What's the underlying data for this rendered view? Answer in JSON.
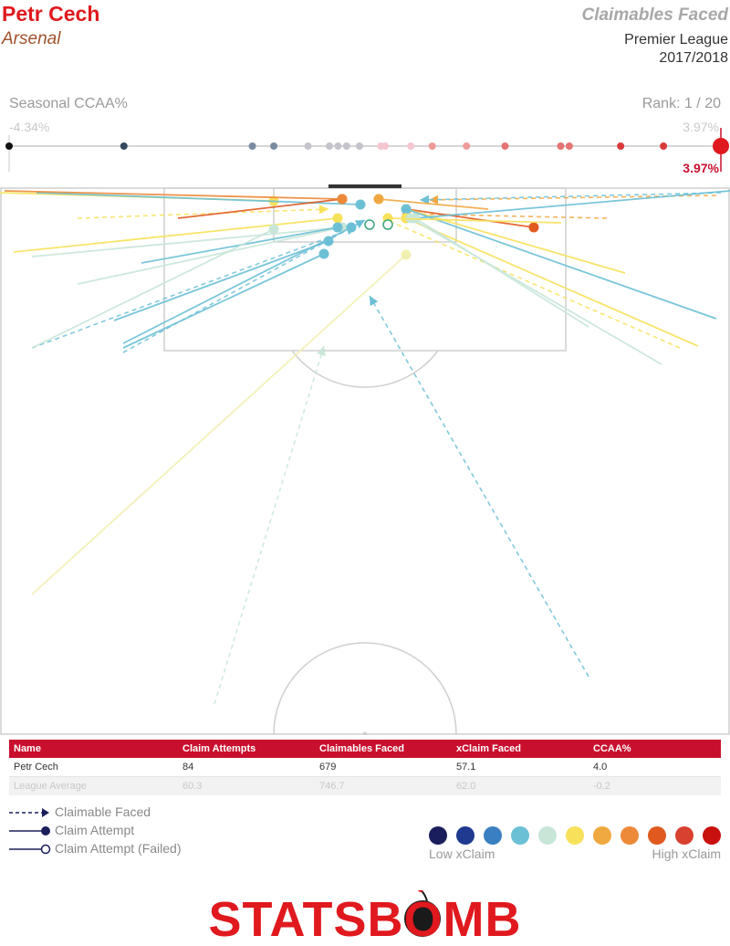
{
  "header": {
    "player": "Petr Cech",
    "team": "Arsenal",
    "title": "Claimables Faced",
    "competition": "Premier League",
    "season": "2017/2018"
  },
  "scale": {
    "label": "Seasonal CCAA%",
    "rank": "Rank: 1 / 20",
    "min_label": "-4.34%",
    "max_label": "3.97%",
    "value_label": "3.97%",
    "range": [
      -4.34,
      3.97
    ],
    "highlight": 3.97,
    "others": [
      -4.34,
      -3.0,
      -1.5,
      -1.25,
      -0.85,
      -0.6,
      -0.5,
      -0.4,
      -0.25,
      0.0,
      0.05,
      0.35,
      0.6,
      1.0,
      1.45,
      2.1,
      2.2,
      2.8,
      3.3
    ]
  },
  "table": {
    "headers": [
      "Name",
      "Claim Attempts",
      "Claimables Faced",
      "xClaim Faced",
      "CCAA%"
    ],
    "rows": [
      [
        "Petr Cech",
        "84",
        "679",
        "57.1",
        "4.0"
      ]
    ],
    "average": [
      "League Average",
      "60.3",
      "746.7",
      "62.0",
      "-0.2"
    ]
  },
  "legend": {
    "faced": "Claimable Faced",
    "attempt": "Claim Attempt",
    "failed": "Claim Attempt (Failed)",
    "low": "Low xClaim",
    "high": "High xClaim",
    "colors": [
      "#1a1f5c",
      "#1f3a8f",
      "#3a7fc1",
      "#6cc0d6",
      "#c8e6d8",
      "#f7e15a",
      "#f0a840",
      "#ec8a3a",
      "#e05a20",
      "#d84030",
      "#c8100e"
    ]
  },
  "brand": {
    "text": "STATSBOMB",
    "color": "#e0191e"
  },
  "chart_data": {
    "type": "scatter",
    "description_units": "pitch coordinates: x across the width (0-80), y distance from goal line (0-60)",
    "series": [
      {
        "kind": "claim_attempt",
        "points": [
          {
            "from": [
              0,
              0.5
            ],
            "to": [
              30,
              1.4
            ],
            "color": "#f7e15a"
          },
          {
            "from": [
              1.5,
              7
            ],
            "to": [
              37,
              3.3
            ],
            "color": "#f7e15a"
          },
          {
            "from": [
              3.5,
              7.5
            ],
            "to": [
              37.5,
              4.3
            ],
            "color": "#c8e6d8"
          },
          {
            "from": [
              8.5,
              10.5
            ],
            "to": [
              37.5,
              4.3
            ],
            "color": "#c8e6d8"
          },
          {
            "from": [
              15.5,
              8.2
            ],
            "to": [
              37,
              4.3
            ],
            "color": "#6cc0d6"
          },
          {
            "from": [
              12.5,
              14.5
            ],
            "to": [
              36,
              5.8
            ],
            "color": "#6cc0d6"
          },
          {
            "from": [
              13.5,
              17
            ],
            "to": [
              38.5,
              4.3
            ],
            "color": "#6cc0d6"
          },
          {
            "from": [
              13.5,
              17.5
            ],
            "to": [
              35.5,
              7.2
            ],
            "color": "#6cc0d6"
          },
          {
            "from": [
              3.5,
              17.5
            ],
            "to": [
              30,
              4.5
            ],
            "color": "#c8e6d8"
          },
          {
            "from": [
              4,
              0.5
            ],
            "to": [
              39.5,
              1.8
            ],
            "color": "#6cc0d6"
          },
          {
            "from": [
              19.5,
              3.3
            ],
            "to": [
              37.5,
              1.2
            ],
            "color": "#e05a20"
          },
          {
            "from": [
              0.5,
              0.3
            ],
            "to": [
              37.5,
              1.2
            ],
            "color": "#ec8a3a"
          },
          {
            "from": [
              44.5,
              2.3
            ],
            "to": [
              58.5,
              4.3
            ],
            "color": "#e05a20"
          },
          {
            "from": [
              68.5,
              9.3
            ],
            "to": [
              44.5,
              2.3
            ],
            "color": "#f7e15a"
          },
          {
            "from": [
              78.5,
              14.3
            ],
            "to": [
              44.5,
              2.3
            ],
            "color": "#6cc0d6"
          },
          {
            "from": [
              80,
              0.3
            ],
            "to": [
              45.5,
              3.3
            ],
            "color": "#6cc0d6"
          },
          {
            "from": [
              76.5,
              17.3
            ],
            "to": [
              44.5,
              3.3
            ],
            "color": "#f7e15a"
          },
          {
            "from": [
              64.5,
              15.2
            ],
            "to": [
              45.5,
              3.3
            ],
            "color": "#c8e6d8"
          },
          {
            "from": [
              72.5,
              19.3
            ],
            "to": [
              45,
              3.3
            ],
            "color": "#c8e6d8"
          },
          {
            "from": [
              3.5,
              44.5
            ],
            "to": [
              44.5,
              7.3
            ],
            "color": "#f2f0b0"
          },
          {
            "from": [
              61.5,
              3.8
            ],
            "to": [
              42.5,
              3.3
            ],
            "color": "#f7e15a"
          },
          {
            "from": [
              53.5,
              2.3
            ],
            "to": [
              41.5,
              1.2
            ],
            "color": "#f0a840"
          }
        ]
      },
      {
        "kind": "claimable_faced",
        "points": [
          {
            "from": [
              3.5,
              17.5
            ],
            "to": [
              39,
              4.3
            ],
            "color": "#6cc0d6"
          },
          {
            "from": [
              13.5,
              18
            ],
            "to": [
              40,
              3.5
            ],
            "color": "#6cc0d6"
          },
          {
            "from": [
              23.5,
              56.5
            ],
            "to": [
              35.5,
              17.3
            ],
            "color": "#c8e6d8"
          },
          {
            "from": [
              64.5,
              53.5
            ],
            "to": [
              40.5,
              11.8
            ],
            "color": "#6cc0d6"
          },
          {
            "from": [
              74.5,
              17.5
            ],
            "to": [
              42,
              3.3
            ],
            "color": "#f7e15a"
          },
          {
            "from": [
              66.5,
              3.3
            ],
            "to": [
              44,
              2.8
            ],
            "color": "#f0a840"
          },
          {
            "from": [
              78.5,
              0.8
            ],
            "to": [
              47,
              1.3
            ],
            "color": "#f0a840"
          },
          {
            "from": [
              8.5,
              3.3
            ],
            "to": [
              36,
              2.3
            ],
            "color": "#f7e15a"
          },
          {
            "from": [
              79,
              0.5
            ],
            "to": [
              46,
              1.3
            ],
            "color": "#6cc0d6"
          }
        ]
      }
    ]
  }
}
